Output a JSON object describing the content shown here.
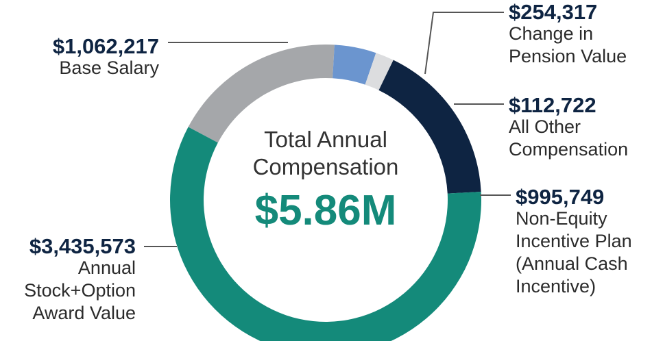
{
  "chart_data": {
    "type": "pie",
    "title": "Total Annual Compensation",
    "total_label": "$5.86M",
    "slices": [
      {
        "label": "Base Salary",
        "value": 1062217,
        "amount_text": "$1,062,217",
        "color": "#a5a7aa"
      },
      {
        "label": "Change in Pension Value",
        "value": 254317,
        "amount_text": "$254,317",
        "color": "#6b95cf"
      },
      {
        "label": "All Other Compensation",
        "value": 112722,
        "amount_text": "$112,722",
        "color": "#dcdddf"
      },
      {
        "label": "Non-Equity Incentive Plan (Annual Cash Incentive)",
        "value": 995749,
        "amount_text": "$995,749",
        "color": "#0e2442"
      },
      {
        "label": "Annual Stock+Option Award Value",
        "value": 3435573,
        "amount_text": "$3,435,573",
        "color": "#148a7a"
      }
    ]
  },
  "labels": {
    "base_salary": {
      "amount": "$1,062,217",
      "text": "Base Salary"
    },
    "pension": {
      "amount": "$254,317",
      "text": "Change in\nPension Value"
    },
    "other": {
      "amount": "$112,722",
      "text": "All Other\nCompensation"
    },
    "non_equity": {
      "amount": "$995,749",
      "text": "Non-Equity\nIncentive Plan\n(Annual Cash\nIncentive)"
    },
    "stock": {
      "amount": "$3,435,573",
      "text": "Annual\nStock+Option\nAward Value"
    }
  }
}
